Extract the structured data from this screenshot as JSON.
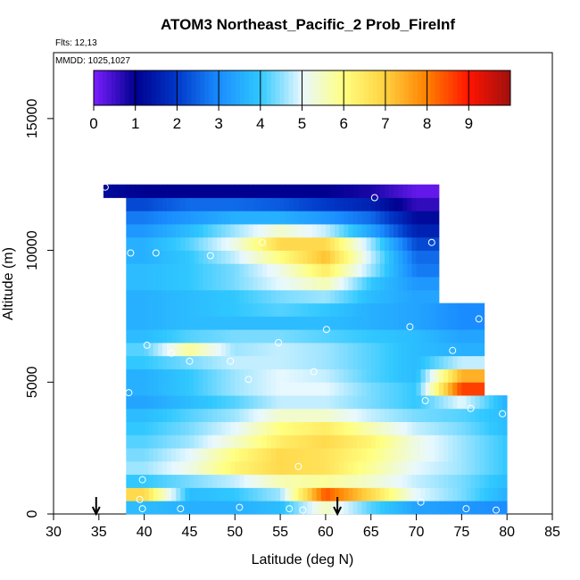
{
  "chart_data": {
    "type": "heatmap",
    "title": "ATOM3 Northeast_Pacific_2 Prob_FireInf",
    "flights_note": "Flts: 12,13",
    "date_note": "MMDD: 1025,1027",
    "xlabel": "Latitude (deg N)",
    "ylabel": "Altitude (m)",
    "xlim": [
      30,
      85
    ],
    "ylim": [
      0,
      17500
    ],
    "xticks": [
      "30",
      "35",
      "40",
      "45",
      "50",
      "55",
      "60",
      "65",
      "70",
      "75",
      "80",
      "85"
    ],
    "yticks": [
      "0",
      "5000",
      "10000",
      "15000"
    ],
    "colorbar": {
      "range": [
        0,
        10
      ],
      "tick_labels": [
        "0",
        "1",
        "2",
        "3",
        "4",
        "5",
        "6",
        "7",
        "8",
        "9"
      ],
      "colors": [
        "#7a1fff",
        "#000090",
        "#0038c8",
        "#1a8cff",
        "#30c8ff",
        "#e8f8ff",
        "#ffff80",
        "#ffd040",
        "#ff8000",
        "#ff1400",
        "#a01010"
      ]
    },
    "altitude_bins_m": [
      0,
      500,
      1000,
      1500,
      2000,
      2500,
      3000,
      3500,
      4000,
      4500,
      5000,
      5500,
      6000,
      6500,
      7000,
      7500,
      8000,
      8500,
      9000,
      9500,
      10000,
      10500,
      11000,
      11500,
      12000,
      12500
    ],
    "latitude_bins_deg": [
      35.5,
      40,
      45,
      50,
      55,
      60,
      65,
      70,
      75,
      80
    ],
    "values": [
      [
        null,
        3.8,
        3.6,
        3.6,
        3.8,
        5.5,
        4.2,
        3.4,
        3.2,
        3.0
      ],
      [
        null,
        6.8,
        3.8,
        4.0,
        4.6,
        8.4,
        6.8,
        5.0,
        4.4,
        3.6
      ],
      [
        null,
        4.0,
        4.4,
        4.8,
        5.6,
        5.8,
        5.4,
        4.8,
        4.4,
        3.8
      ],
      [
        null,
        4.6,
        5.2,
        6.2,
        6.8,
        6.6,
        5.8,
        5.0,
        4.6,
        4.0
      ],
      [
        null,
        4.4,
        5.0,
        6.0,
        6.8,
        6.6,
        6.0,
        5.2,
        4.6,
        4.0
      ],
      [
        null,
        4.2,
        4.6,
        5.4,
        6.4,
        6.8,
        6.2,
        5.2,
        4.6,
        4.0
      ],
      [
        null,
        4.0,
        4.4,
        5.0,
        6.0,
        6.4,
        5.6,
        4.8,
        4.4,
        3.8
      ],
      [
        null,
        3.8,
        4.2,
        4.6,
        5.4,
        5.4,
        4.8,
        4.4,
        4.2,
        3.8
      ],
      [
        null,
        3.4,
        3.8,
        4.2,
        4.8,
        4.8,
        4.4,
        4.0,
        5.0,
        3.6
      ],
      [
        null,
        3.6,
        4.0,
        4.6,
        5.0,
        5.0,
        4.4,
        4.0,
        8.6,
        null
      ],
      [
        null,
        3.6,
        4.0,
        4.6,
        5.0,
        4.8,
        4.2,
        3.8,
        7.4,
        null
      ],
      [
        null,
        4.0,
        4.4,
        4.8,
        4.8,
        4.6,
        4.2,
        3.8,
        4.8,
        null
      ],
      [
        null,
        4.2,
        5.8,
        4.6,
        4.8,
        4.6,
        4.2,
        3.8,
        3.6,
        null
      ],
      [
        null,
        3.8,
        4.2,
        4.4,
        4.4,
        4.2,
        4.0,
        3.8,
        3.4,
        null
      ],
      [
        null,
        3.6,
        3.8,
        3.8,
        3.8,
        3.8,
        3.6,
        3.4,
        3.0,
        null
      ],
      [
        null,
        3.6,
        3.8,
        4.0,
        4.2,
        4.0,
        3.6,
        3.4,
        3.0,
        null
      ],
      [
        null,
        3.6,
        3.8,
        4.0,
        4.4,
        4.6,
        3.8,
        3.4,
        null,
        null
      ],
      [
        null,
        3.8,
        4.0,
        4.4,
        5.0,
        5.6,
        4.0,
        3.2,
        null,
        null
      ],
      [
        null,
        3.8,
        4.0,
        4.4,
        5.2,
        6.4,
        4.6,
        2.8,
        null,
        null
      ],
      [
        null,
        3.6,
        4.0,
        4.8,
        6.0,
        7.2,
        4.8,
        2.6,
        null,
        null
      ],
      [
        null,
        3.6,
        4.2,
        5.2,
        6.8,
        6.8,
        4.6,
        2.2,
        null,
        null
      ],
      [
        null,
        3.2,
        3.8,
        4.6,
        5.4,
        4.8,
        3.4,
        1.6,
        null,
        null
      ],
      [
        null,
        2.8,
        3.2,
        3.6,
        3.6,
        3.2,
        2.6,
        1.2,
        null,
        null
      ],
      [
        null,
        2.2,
        2.6,
        2.6,
        2.4,
        2.0,
        1.6,
        0.6,
        null,
        null
      ],
      [
        1.2,
        1.0,
        1.0,
        1.0,
        1.0,
        1.0,
        0.8,
        0.2,
        null,
        null
      ],
      [
        null,
        null,
        null,
        null,
        null,
        null,
        null,
        null,
        null,
        null
      ]
    ],
    "sample_points": [
      {
        "lat": 39.8,
        "alt": 200
      },
      {
        "lat": 44,
        "alt": 200
      },
      {
        "lat": 50.5,
        "alt": 250
      },
      {
        "lat": 56,
        "alt": 200
      },
      {
        "lat": 57.5,
        "alt": 150
      },
      {
        "lat": 70.5,
        "alt": 450
      },
      {
        "lat": 75.5,
        "alt": 200
      },
      {
        "lat": 78.8,
        "alt": 150
      },
      {
        "lat": 39.5,
        "alt": 550
      },
      {
        "lat": 39.8,
        "alt": 1300
      },
      {
        "lat": 57,
        "alt": 1800
      },
      {
        "lat": 79.5,
        "alt": 3800
      },
      {
        "lat": 38.3,
        "alt": 4600
      },
      {
        "lat": 71,
        "alt": 4300
      },
      {
        "lat": 76,
        "alt": 4000
      },
      {
        "lat": 51.5,
        "alt": 5100
      },
      {
        "lat": 58.7,
        "alt": 5400
      },
      {
        "lat": 45,
        "alt": 5800
      },
      {
        "lat": 49.5,
        "alt": 5800
      },
      {
        "lat": 43,
        "alt": 6100
      },
      {
        "lat": 40.3,
        "alt": 6400
      },
      {
        "lat": 54.8,
        "alt": 6500
      },
      {
        "lat": 74,
        "alt": 6200
      },
      {
        "lat": 37.2,
        "alt": 7100
      },
      {
        "lat": 60.1,
        "alt": 7000
      },
      {
        "lat": 69.3,
        "alt": 7100
      },
      {
        "lat": 76.9,
        "alt": 7400
      },
      {
        "lat": 38.5,
        "alt": 9900
      },
      {
        "lat": 41.3,
        "alt": 9900
      },
      {
        "lat": 47.3,
        "alt": 9800
      },
      {
        "lat": 53,
        "alt": 10300
      },
      {
        "lat": 71.7,
        "alt": 10300
      },
      {
        "lat": 65.4,
        "alt": 12000
      },
      {
        "lat": 35.7,
        "alt": 12400
      }
    ],
    "flight_markers_lat": [
      34.7,
      61.3
    ],
    "grid": false,
    "legend": "colorbar-top"
  }
}
